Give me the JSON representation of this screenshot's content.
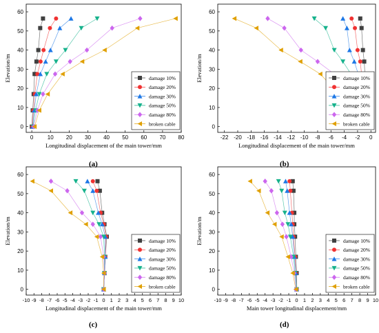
{
  "chart_data": [
    {
      "panel": "(a)",
      "type": "line",
      "xlabel": "Longitudinal displacement of the main tower/mm",
      "ylabel": "Elevation/m",
      "xlim": [
        -3,
        80
      ],
      "ylim": [
        -3,
        64
      ],
      "xticks": [
        0,
        10,
        20,
        30,
        40,
        50,
        60,
        70,
        80
      ],
      "yticks": [
        0,
        10,
        20,
        30,
        40,
        50,
        60
      ],
      "legend_position": "bottom-right",
      "series": [
        {
          "name": "damage 10%",
          "x": [
            0,
            0.5,
            1.0,
            1.5,
            2.5,
            3.5,
            4.5,
            6.0
          ],
          "y": [
            0,
            8.5,
            17,
            27.5,
            34,
            40,
            51.5,
            56.5
          ]
        },
        {
          "name": "damage 20%",
          "x": [
            0.3,
            0.9,
            1.6,
            3.0,
            4.7,
            6.3,
            9.7,
            13.0
          ],
          "y": [
            0,
            8.5,
            17,
            27.5,
            34,
            40,
            51.5,
            56.5
          ]
        },
        {
          "name": "damage 30%",
          "x": [
            0.5,
            1.3,
            2.4,
            4.6,
            7.4,
            10.0,
            15.0,
            21.0
          ],
          "y": [
            0,
            8.5,
            17,
            27.5,
            34,
            40,
            51.5,
            56.5
          ]
        },
        {
          "name": "damage 50%",
          "x": [
            0.7,
            2.0,
            4.0,
            8.0,
            13.0,
            18.0,
            26.5,
            35.0
          ],
          "y": [
            0,
            8.5,
            17,
            27.5,
            34,
            40,
            51.5,
            56.5
          ]
        },
        {
          "name": "damage 80%",
          "x": [
            1.0,
            3.0,
            6.0,
            12.5,
            20.5,
            29.5,
            43.0,
            58.0
          ],
          "y": [
            0,
            8.5,
            17,
            27.5,
            34,
            40,
            51.5,
            56.5
          ]
        },
        {
          "name": "broken cable",
          "x": [
            1.5,
            4.0,
            8.5,
            16.5,
            27.0,
            39.0,
            56.5,
            77.0
          ],
          "y": [
            0,
            8.5,
            17,
            27.5,
            34,
            40,
            51.5,
            56.5
          ]
        }
      ]
    },
    {
      "panel": "(b)",
      "type": "line",
      "xlabel": "Longitudinal displacement of the main tower/mm",
      "ylabel": "Elevation/m",
      "xlim": [
        -23,
        0.7
      ],
      "ylim": [
        -3,
        64
      ],
      "xticks": [
        -22,
        -20,
        -18,
        -16,
        -14,
        -12,
        -10,
        -8,
        -6,
        -4,
        -2,
        0
      ],
      "yticks": [
        0,
        10,
        20,
        30,
        40,
        50,
        60
      ],
      "legend_position": "bottom-right",
      "series": [
        {
          "name": "damage 10%",
          "x": [
            -0.5,
            -0.5,
            -0.6,
            -0.9,
            -1.0,
            -1.2,
            -1.4,
            -1.6
          ],
          "y": [
            0,
            8.5,
            17,
            27.5,
            34,
            40,
            51.5,
            56.5
          ]
        },
        {
          "name": "damage 20%",
          "x": [
            -0.6,
            -0.7,
            -0.8,
            -1.4,
            -1.6,
            -2.0,
            -2.4,
            -2.9
          ],
          "y": [
            0,
            8.5,
            17,
            27.5,
            34,
            40,
            51.5,
            56.5
          ]
        },
        {
          "name": "damage 30%",
          "x": [
            -0.8,
            -0.8,
            -1.0,
            -1.9,
            -2.5,
            -3.2,
            -3.6,
            -4.2
          ],
          "y": [
            0,
            8.5,
            17,
            27.5,
            34,
            40,
            51.5,
            56.5
          ]
        },
        {
          "name": "damage 50%",
          "x": [
            -1.0,
            -1.2,
            -1.8,
            -3.0,
            -4.2,
            -5.5,
            -6.8,
            -8.5
          ],
          "y": [
            0,
            8.5,
            17,
            27.5,
            34,
            40,
            51.5,
            56.5
          ]
        },
        {
          "name": "damage 80%",
          "x": [
            -1.3,
            -1.9,
            -3.6,
            -5.5,
            -8.0,
            -10.5,
            -13.0,
            -15.5
          ],
          "y": [
            0,
            8.5,
            17,
            27.5,
            34,
            40,
            51.5,
            56.5
          ]
        },
        {
          "name": "broken cable",
          "x": [
            -1.6,
            -2.6,
            -4.8,
            -7.6,
            -10.6,
            -13.5,
            -17.2,
            -20.5
          ],
          "y": [
            0,
            8.5,
            17,
            27.5,
            34,
            40,
            51.5,
            56.5
          ]
        }
      ]
    },
    {
      "panel": "(c)",
      "type": "line",
      "xlabel": "Longitudinal displacement of the main tower/mm",
      "ylabel": "Elevation/m",
      "xlim": [
        -10,
        10
      ],
      "ylim": [
        -3,
        64
      ],
      "xticks": [
        -10,
        -9,
        -8,
        -7,
        -6,
        -5,
        -4,
        -3,
        -2,
        -1,
        0,
        1,
        2,
        3,
        4,
        5,
        6,
        7,
        8,
        9,
        10
      ],
      "yticks": [
        0,
        10,
        20,
        30,
        40,
        50,
        60
      ],
      "legend_position": "bottom-right",
      "series": [
        {
          "name": "damage 10%",
          "x": [
            0,
            0.1,
            0.2,
            0.4,
            0.1,
            -0.2,
            -0.5,
            -0.8
          ],
          "y": [
            0,
            8.5,
            17,
            27.5,
            34,
            40,
            51.5,
            56.5
          ]
        },
        {
          "name": "damage 20%",
          "x": [
            0,
            0.1,
            0.2,
            0.3,
            0,
            -0.4,
            -0.9,
            -1.4
          ],
          "y": [
            0,
            8.5,
            17,
            27.5,
            34,
            40,
            51.5,
            56.5
          ]
        },
        {
          "name": "damage 30%",
          "x": [
            0,
            0.1,
            0.2,
            0.2,
            -0.2,
            -0.7,
            -1.4,
            -2.1
          ],
          "y": [
            0,
            8.5,
            17,
            27.5,
            34,
            40,
            51.5,
            56.5
          ]
        },
        {
          "name": "damage 50%",
          "x": [
            0,
            0.1,
            0.1,
            0,
            -0.6,
            -1.4,
            -2.5,
            -3.6
          ],
          "y": [
            0,
            8.5,
            17,
            27.5,
            34,
            40,
            51.5,
            56.5
          ]
        },
        {
          "name": "damage 80%",
          "x": [
            0,
            0.1,
            0,
            -0.4,
            -1.4,
            -2.8,
            -4.7,
            -6.8
          ],
          "y": [
            0,
            8.5,
            17,
            27.5,
            34,
            40,
            51.5,
            56.5
          ]
        },
        {
          "name": "broken cable",
          "x": [
            0,
            0,
            -0.2,
            -0.9,
            -2.3,
            -4.3,
            -6.8,
            -9.2
          ],
          "y": [
            0,
            8.5,
            17,
            27.5,
            34,
            40,
            51.5,
            56.5
          ]
        }
      ]
    },
    {
      "panel": "(d)",
      "type": "line",
      "xlabel": "Main tower longitudinal displacement/mm",
      "ylabel": "Elevation/m",
      "xlim": [
        -10,
        10
      ],
      "ylim": [
        -3,
        64
      ],
      "xticks": [
        -10,
        -9,
        -8,
        -7,
        -6,
        -5,
        -4,
        -3,
        -2,
        -1,
        0,
        1,
        2,
        3,
        4,
        5,
        6,
        7,
        8,
        9,
        10
      ],
      "yticks": [
        0,
        10,
        20,
        30,
        40,
        50,
        60
      ],
      "legend_position": "bottom-right",
      "series": [
        {
          "name": "damage 10%",
          "x": [
            0,
            0,
            -0.1,
            -0.2,
            -0.3,
            -0.3,
            -0.4,
            -0.5
          ],
          "y": [
            0,
            8.5,
            17,
            27.5,
            34,
            40,
            51.5,
            56.5
          ]
        },
        {
          "name": "damage 20%",
          "x": [
            0,
            -0.1,
            -0.2,
            -0.4,
            -0.5,
            -0.6,
            -0.8,
            -0.9
          ],
          "y": [
            0,
            8.5,
            17,
            27.5,
            34,
            40,
            51.5,
            56.5
          ]
        },
        {
          "name": "damage 30%",
          "x": [
            0,
            -0.1,
            -0.3,
            -0.5,
            -0.7,
            -0.9,
            -1.2,
            -1.4
          ],
          "y": [
            0,
            8.5,
            17,
            27.5,
            34,
            40,
            51.5,
            56.5
          ]
        },
        {
          "name": "damage 50%",
          "x": [
            0,
            -0.2,
            -0.4,
            -0.8,
            -1.1,
            -1.5,
            -1.9,
            -2.3
          ],
          "y": [
            0,
            8.5,
            17,
            27.5,
            34,
            40,
            51.5,
            56.5
          ]
        },
        {
          "name": "damage 80%",
          "x": [
            -0.1,
            -0.3,
            -0.7,
            -1.3,
            -1.8,
            -2.5,
            -3.2,
            -4.0
          ],
          "y": [
            0,
            8.5,
            17,
            27.5,
            34,
            40,
            51.5,
            56.5
          ]
        },
        {
          "name": "broken cable",
          "x": [
            -0.1,
            -0.5,
            -1.1,
            -1.9,
            -2.8,
            -3.7,
            -4.8,
            -5.9
          ],
          "y": [
            0,
            8.5,
            17,
            27.5,
            34,
            40,
            51.5,
            56.5
          ]
        }
      ]
    }
  ],
  "series_style": [
    {
      "marker": "square",
      "color": "#404040"
    },
    {
      "marker": "circle",
      "color": "#f03232"
    },
    {
      "marker": "triangle-up",
      "color": "#1e78e6"
    },
    {
      "marker": "triangle-down",
      "color": "#16b28c"
    },
    {
      "marker": "diamond",
      "color": "#cc66ee"
    },
    {
      "marker": "triangle-left",
      "color": "#e0a000"
    }
  ]
}
